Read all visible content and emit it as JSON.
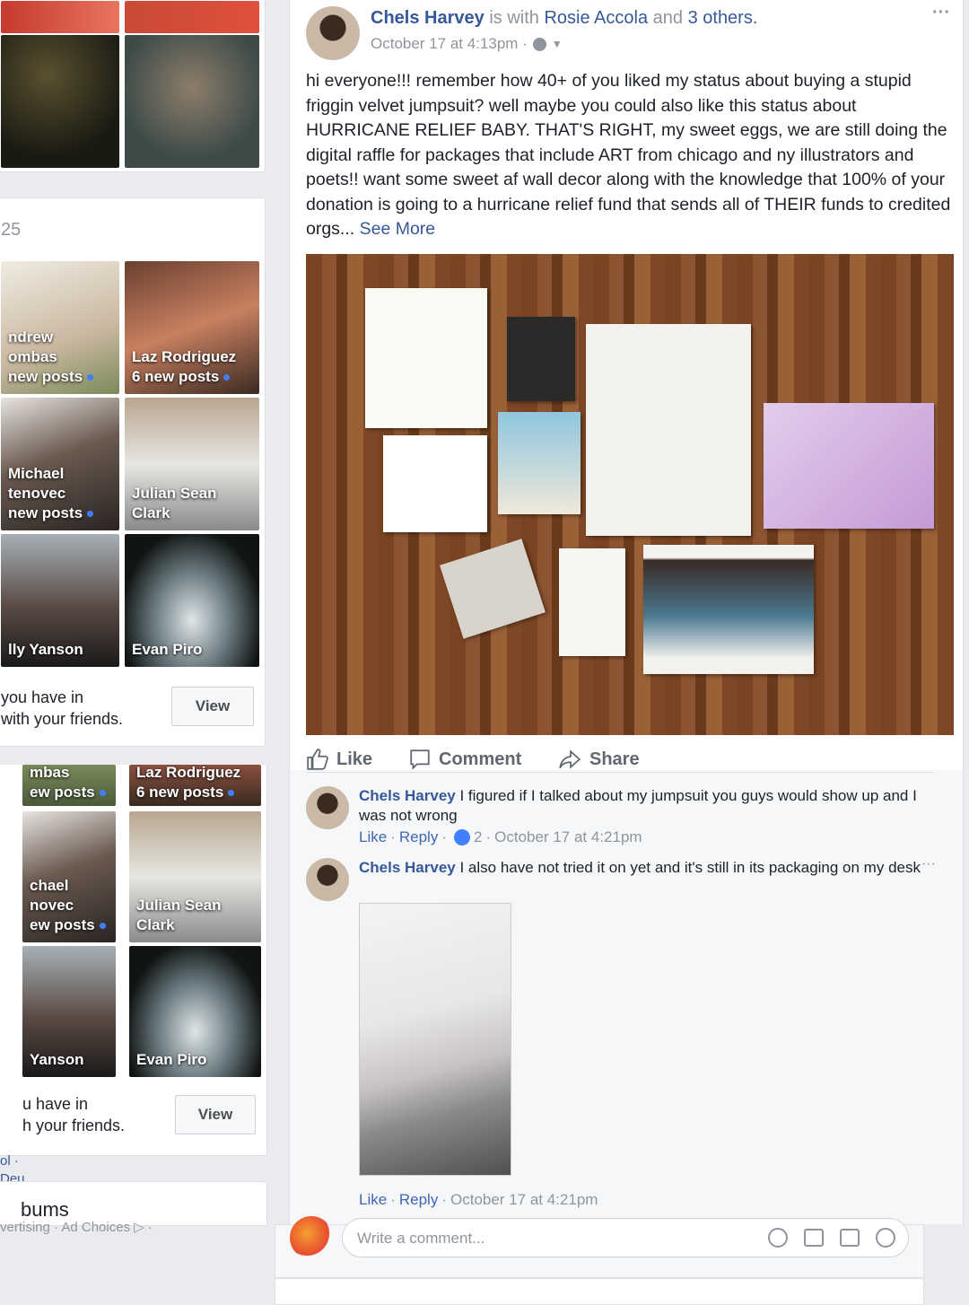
{
  "left_top": {
    "count": "25",
    "tiles": [
      {
        "name": "Andrew Sombas",
        "sub": "new posts",
        "line1": "ndrew",
        "line2": "ombas",
        "line3": "new posts"
      },
      {
        "name": "Laz Rodriguez",
        "line1": "Laz Rodriguez",
        "line2": "6 new posts"
      },
      {
        "name": "Michael Stenovec",
        "line1": "Michael",
        "line2": "tenovec",
        "line3": "new posts"
      },
      {
        "name": "Julian Sean Clark",
        "line1": "Julian Sean",
        "line2": "Clark"
      },
      {
        "name": "Ally Yanson",
        "line1": "lly Yanson"
      },
      {
        "name": "Evan Piro",
        "line1": "Evan Piro"
      }
    ],
    "footer_text_1": "you have in",
    "footer_text_2": "with your friends.",
    "view_label": "View"
  },
  "left_bottom": {
    "tiles": [
      {
        "line1": "mbas",
        "line2": "ew posts"
      },
      {
        "line1": "Laz Rodriguez",
        "line2": "6 new posts"
      },
      {
        "line1": "chael",
        "line2": "novec",
        "line3": "ew posts"
      },
      {
        "line1": "Julian Sean",
        "line2": "Clark"
      },
      {
        "line1": "Yanson"
      },
      {
        "line1": "Evan Piro"
      }
    ],
    "footer_text_1": "u have in",
    "footer_text_2": "h your friends.",
    "view_label": "View",
    "frag_1": "ol ·",
    "frag_2": "Deu",
    "albums": "bums",
    "ads": "vertising · Ad Choices ▷ ·"
  },
  "post": {
    "author": "Chels Harvey",
    "with_text": "is with",
    "tagged": "Rosie Accola",
    "and_text": "and",
    "others": "3 others.",
    "timestamp": "October 17 at 4:13pm ·",
    "more_icon": "···",
    "body": "hi everyone!!! remember how 40+ of you liked my status about buying a stupid friggin velvet jumpsuit? well maybe you could also like this status about HURRICANE RELIEF BABY. THAT'S RIGHT, my sweet eggs, we are still doing the digital raffle for packages that include ART from chicago and ny illustrators and poets!! want some sweet af wall decor along with the knowledge that 100% of your donation is going to a hurricane relief fund that sends all of THEIR funds to credited orgs...",
    "see_more": "See More",
    "actions": {
      "like": "Like",
      "comment": "Comment",
      "share": "Share"
    }
  },
  "comments": [
    {
      "author": "Chels Harvey",
      "text": "I figured if I talked about my jumpsuit you guys would show up and I was not wrong",
      "like": "Like",
      "reply": "Reply",
      "reactions": "2",
      "time": "October 17 at 4:21pm"
    },
    {
      "author": "Chels Harvey",
      "text": "I also have not tried it on yet and it's still in its packaging on my desk",
      "like": "Like",
      "reply": "Reply",
      "time": "October 17 at 4:21pm"
    }
  ],
  "composer": {
    "placeholder": "Write a comment..."
  },
  "colors": {
    "link": "#365899",
    "meta": "#90949c",
    "accent": "#4080ff",
    "bg": "#e9ebee"
  }
}
